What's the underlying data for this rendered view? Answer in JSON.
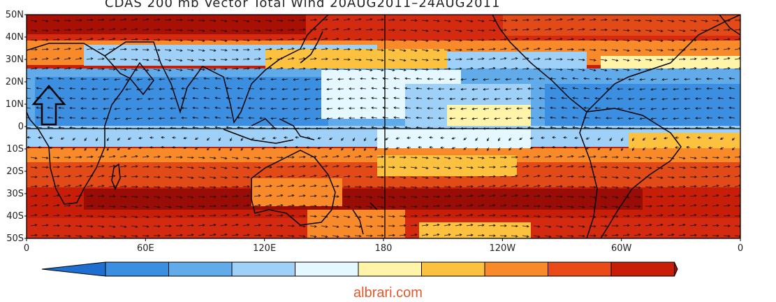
{
  "title": "CDAS 200 mb Vector Total Wind 20AUG2011–24AUG2011",
  "watermark": "albrari.com",
  "lat_labels": [
    "50N",
    "40N",
    "30N",
    "20N",
    "10N",
    "0",
    "10S",
    "20S",
    "30S",
    "40S",
    "50S"
  ],
  "lon_labels": [
    "0",
    "60E",
    "120E",
    "180",
    "120W",
    "60W",
    "0"
  ],
  "colorbar_colors": [
    "#1e6fd0",
    "#3b8ee0",
    "#62abeb",
    "#9fd0f7",
    "#e6f8ff",
    "#fff4a8",
    "#fdc140",
    "#f98a2a",
    "#ea4a18",
    "#c81e08",
    "#9a0c06"
  ],
  "colors": {
    "strong_blue": "#2f7fd9",
    "light_blue": "#a9d4f7",
    "pale": "#eaf7ff",
    "yellow": "#fff4a8",
    "orange": "#f98a2a",
    "red": "#d42a10",
    "dark_red": "#9a0c06"
  },
  "icons": {
    "annotation": "up-arrow-outline-icon"
  }
}
